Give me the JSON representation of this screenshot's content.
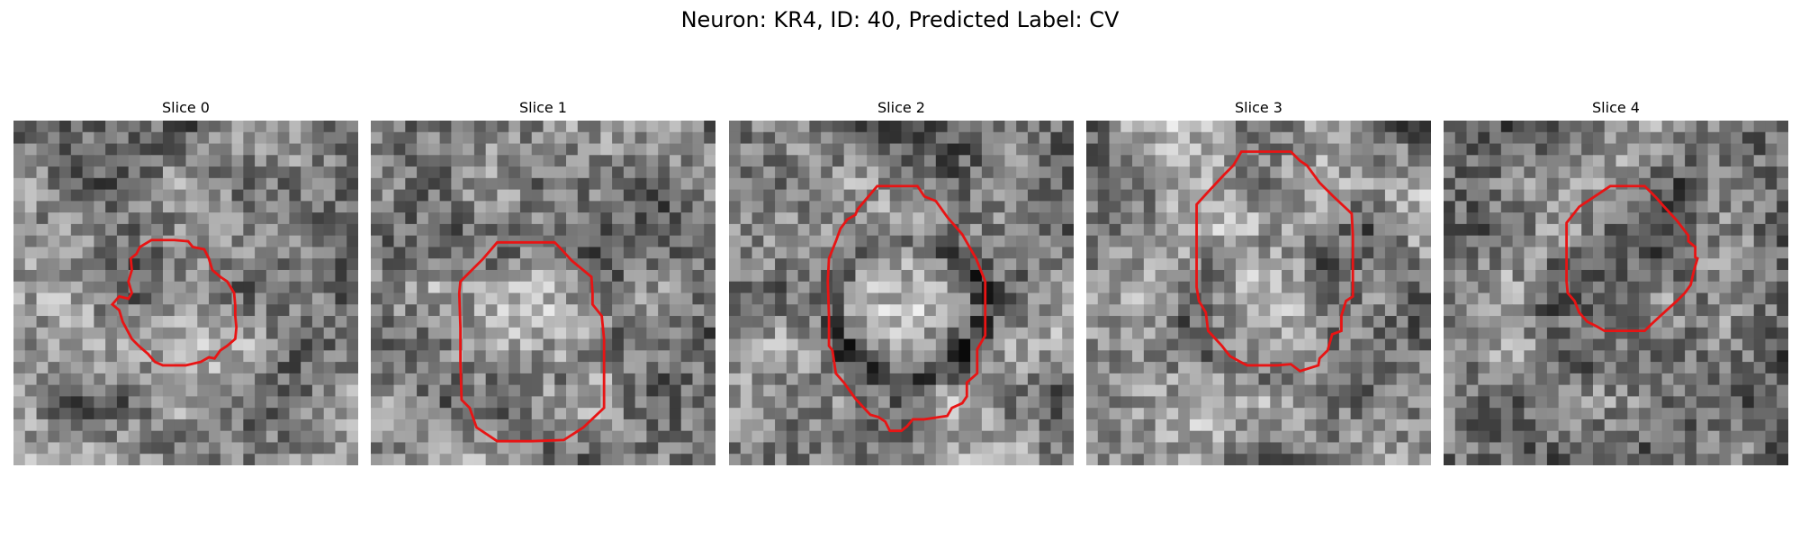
{
  "figure": {
    "title": "Neuron: KR4, ID: 40, Predicted Label: CV"
  },
  "contour_color": "#e81414",
  "slices": [
    {
      "label": "Slice 0",
      "seed": 11,
      "bright_center": 0.2,
      "dark_rim": 0.0
    },
    {
      "label": "Slice 1",
      "seed": 23,
      "bright_center": 0.25,
      "dark_rim": 0.15
    },
    {
      "label": "Slice 2",
      "seed": 37,
      "bright_center": 0.55,
      "dark_rim": 0.45
    },
    {
      "label": "Slice 3",
      "seed": 41,
      "bright_center": 0.3,
      "dark_rim": 0.25
    },
    {
      "label": "Slice 4",
      "seed": 53,
      "bright_center": 0.0,
      "dark_rim": 0.2
    }
  ]
}
